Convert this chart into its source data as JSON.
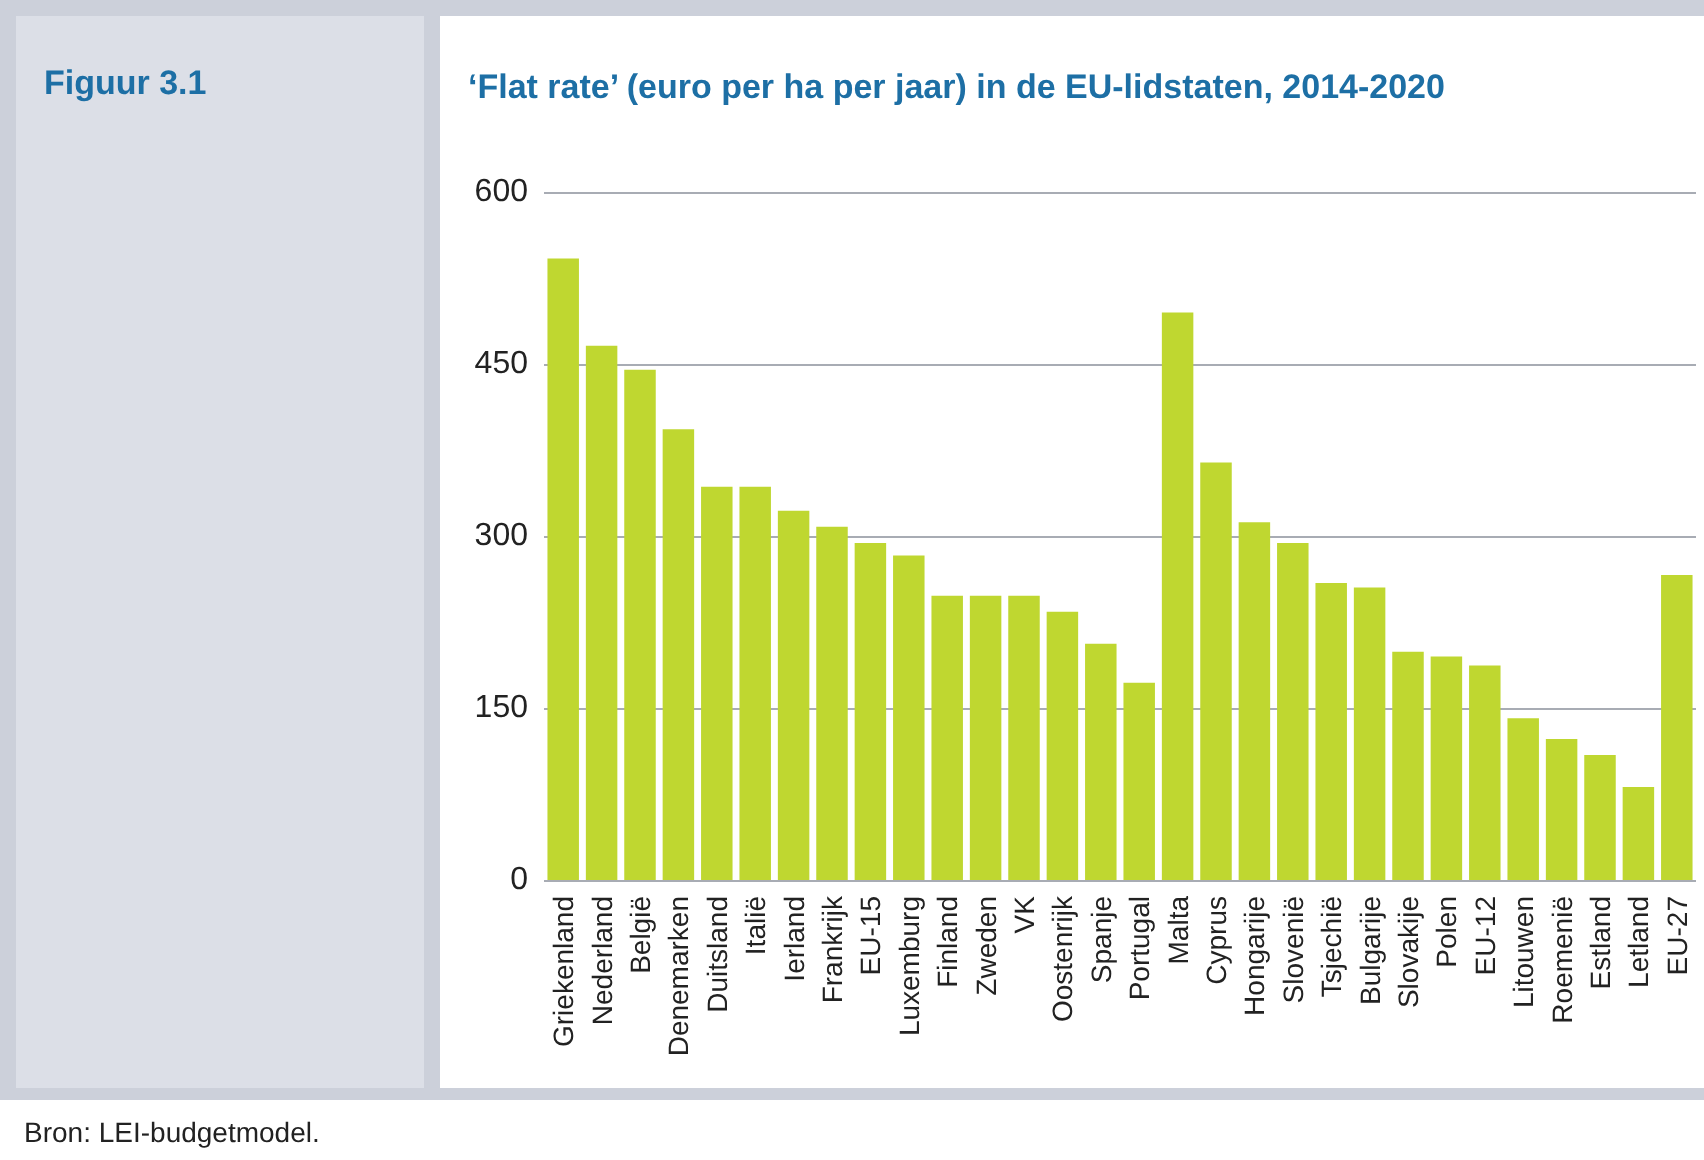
{
  "chart_data": {
    "type": "bar",
    "title": "‘Flat rate’ (euro per ha per jaar) in de EU-lidstaten, 2014-2020",
    "categories": [
      "Griekenland",
      "Nederland",
      "België",
      "Denemarken",
      "Duitsland",
      "Italië",
      "Ierland",
      "Frankrijk",
      "EU-15",
      "Luxemburg",
      "Finland",
      "Zweden",
      "VK",
      "Oostenrijk",
      "Spanje",
      "Portugal",
      "Malta",
      "Cyprus",
      "Hongarije",
      "Slovenië",
      "Tsjechië",
      "Bulgarije",
      "Slovakije",
      "Polen",
      "EU-12",
      "Litouwen",
      "Roemenië",
      "Estland",
      "Letland",
      "EU-27"
    ],
    "values": [
      542,
      466,
      445,
      393,
      343,
      343,
      322,
      308,
      294,
      283,
      248,
      248,
      248,
      234,
      206,
      172,
      495,
      364,
      312,
      294,
      259,
      255,
      199,
      195,
      187,
      141,
      123,
      109,
      81,
      266
    ],
    "color": "#bfd730",
    "ylim": [
      0,
      600
    ],
    "yticks": [
      0,
      150,
      300,
      450,
      600
    ],
    "grid": "y",
    "annotations": [
      "Figuur 3.1",
      "Bron: LEI-budgetmodel."
    ]
  }
}
